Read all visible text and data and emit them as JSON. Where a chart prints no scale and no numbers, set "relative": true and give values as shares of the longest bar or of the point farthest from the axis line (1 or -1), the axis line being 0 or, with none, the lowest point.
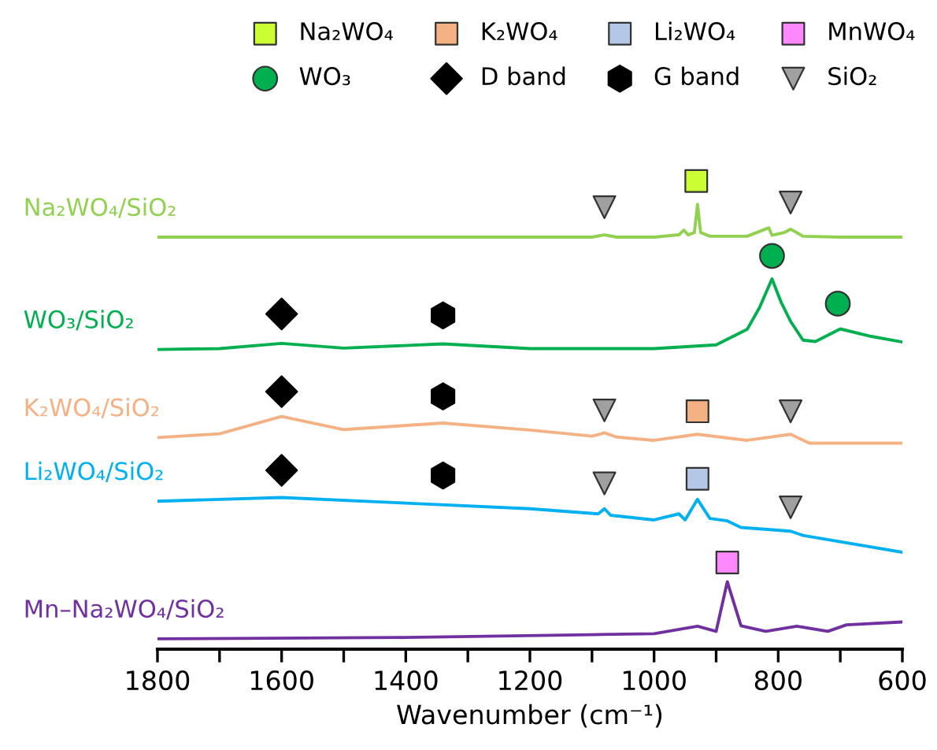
{
  "chart_data": {
    "type": "line",
    "relative": true,
    "xlabel": "Wavenumber (cm⁻¹)",
    "xlim": [
      1800,
      600
    ],
    "xticks": [
      1800,
      {
        "value": 1700,
        "label": null
      },
      1600,
      {
        "value": 1500,
        "label": null
      },
      1400,
      {
        "value": 1300,
        "label": null
      },
      1200,
      {
        "value": 1100,
        "label": null
      },
      1000,
      {
        "value": 900,
        "label": null
      },
      800,
      {
        "value": 700,
        "label": null
      },
      600
    ],
    "tick_labels": "x",
    "legend": "top",
    "grid": false,
    "series": [
      {
        "name": "Na₂WO₄/SiO₂",
        "color": "#92d050",
        "x": [
          1800,
          1500,
          1200,
          1100,
          1080,
          1060,
          1000,
          960,
          952,
          945,
          935,
          930,
          925,
          910,
          850,
          815,
          810,
          790,
          780,
          760,
          700,
          600
        ],
        "values": [
          0.88,
          0.88,
          0.88,
          0.88,
          0.885,
          0.88,
          0.88,
          0.885,
          0.895,
          0.885,
          0.89,
          0.95,
          0.89,
          0.882,
          0.882,
          0.9,
          0.884,
          0.89,
          0.897,
          0.882,
          0.88,
          0.88
        ]
      },
      {
        "name": "WO₃/SiO₂",
        "color": "#00b050",
        "x": [
          1800,
          1700,
          1600,
          1500,
          1340,
          1200,
          1000,
          900,
          850,
          830,
          810,
          795,
          780,
          760,
          740,
          700,
          650,
          600
        ],
        "values": [
          0.64,
          0.642,
          0.653,
          0.643,
          0.652,
          0.642,
          0.642,
          0.65,
          0.683,
          0.73,
          0.791,
          0.74,
          0.7,
          0.66,
          0.657,
          0.684,
          0.668,
          0.656
        ]
      },
      {
        "name": "K₂WO₄/SiO₂",
        "color": "#f4b183",
        "x": [
          1800,
          1700,
          1600,
          1500,
          1340,
          1200,
          1100,
          1080,
          1060,
          1000,
          930,
          850,
          780,
          750,
          600
        ],
        "values": [
          0.452,
          0.46,
          0.497,
          0.469,
          0.483,
          0.468,
          0.455,
          0.462,
          0.453,
          0.446,
          0.459,
          0.446,
          0.459,
          0.44,
          0.44
        ]
      },
      {
        "name": "Li₂WO₄/SiO₂",
        "color": "#00b0f0",
        "x": [
          1800,
          1600,
          1400,
          1200,
          1090,
          1080,
          1070,
          1000,
          960,
          950,
          930,
          910,
          882,
          860,
          780,
          760,
          600
        ],
        "values": [
          0.316,
          0.324,
          0.312,
          0.3,
          0.289,
          0.3,
          0.286,
          0.276,
          0.289,
          0.276,
          0.32,
          0.279,
          0.274,
          0.26,
          0.252,
          0.243,
          0.207
        ]
      },
      {
        "name": "Mn–Na₂WO₄/SiO₂",
        "color": "#7030a0",
        "x": [
          1800,
          1400,
          1100,
          1000,
          930,
          900,
          882,
          860,
          820,
          770,
          720,
          690,
          600
        ],
        "values": [
          0.022,
          0.025,
          0.031,
          0.033,
          0.049,
          0.038,
          0.144,
          0.05,
          0.038,
          0.049,
          0.038,
          0.052,
          0.058
        ]
      },
      {
        "name": "Na₂WO₄",
        "type": "scatter",
        "marker": "square",
        "color": "#ccff33",
        "x": [
          932
        ],
        "values": [
          1.0
        ]
      },
      {
        "name": "K₂WO₄",
        "type": "scatter",
        "marker": "square",
        "color": "#f4b183",
        "x": [
          930
        ],
        "values": [
          0.508
        ]
      },
      {
        "name": "Li₂WO₄",
        "type": "scatter",
        "marker": "square",
        "color": "#b4c7e7",
        "x": [
          930
        ],
        "values": [
          0.364
        ]
      },
      {
        "name": "MnWO₄",
        "type": "scatter",
        "marker": "square",
        "color": "#ff88ff",
        "x": [
          882
        ],
        "values": [
          0.185
        ]
      },
      {
        "name": "WO₃",
        "type": "scatter",
        "marker": "circle",
        "color": "#00b050",
        "x": [
          810,
          704
        ],
        "values": [
          0.84,
          0.738
        ]
      },
      {
        "name": "D band",
        "type": "scatter",
        "marker": "diamond",
        "color": "#000000",
        "x": [
          1600,
          1600,
          1600
        ],
        "values": [
          0.716,
          0.55,
          0.382
        ]
      },
      {
        "name": "G band",
        "type": "scatter",
        "color": "#000000",
        "x": [
          1340,
          1340,
          1340
        ],
        "values": [
          0.713,
          0.54,
          0.371
        ]
      },
      {
        "name": "SiO₂",
        "type": "scatter",
        "marker": "triangle",
        "color": "#a0a0a0",
        "x": [
          1080,
          780,
          1080,
          780,
          1080,
          780
        ],
        "values": [
          0.944,
          0.954,
          0.51,
          0.508,
          0.354,
          0.303
        ]
      }
    ]
  }
}
